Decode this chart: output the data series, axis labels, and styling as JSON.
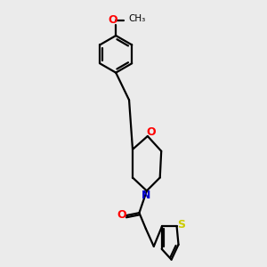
{
  "background_color": "#ebebeb",
  "bond_color": "#000000",
  "oxygen_color": "#ff0000",
  "nitrogen_color": "#0000cc",
  "sulfur_color": "#cccc00",
  "line_width": 1.6,
  "figsize": [
    3.0,
    3.0
  ],
  "dpi": 100,
  "xlim": [
    -0.2,
    1.3
  ],
  "ylim": [
    -1.5,
    1.5
  ]
}
